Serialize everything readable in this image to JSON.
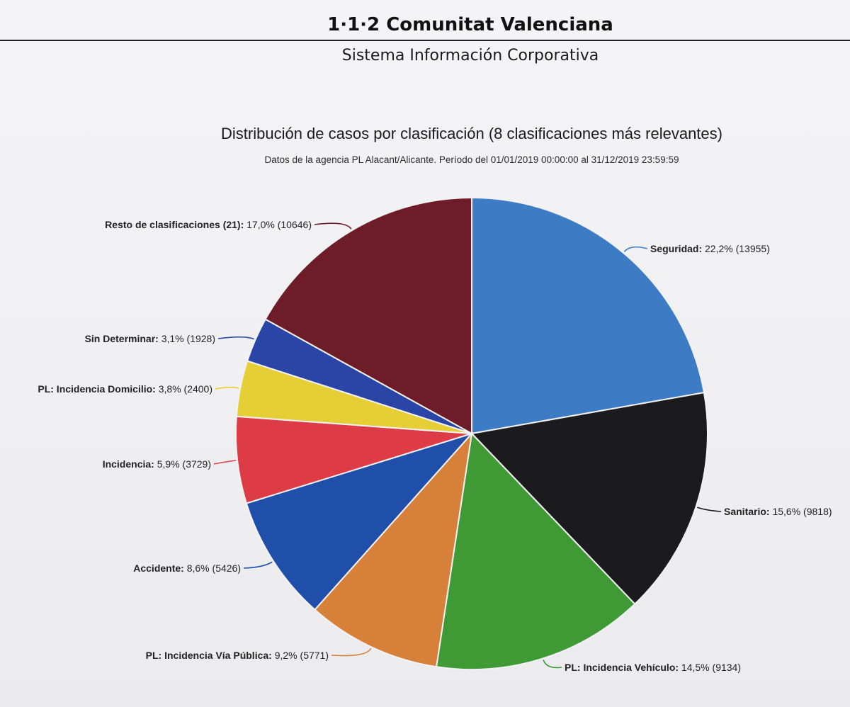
{
  "header": {
    "organization": "1·1·2 Comunitat Valenciana",
    "system": "Sistema Información Corporativa"
  },
  "chart_data": {
    "type": "pie",
    "title": "Distribución de casos por clasificación (8 clasificaciones más relevantes)",
    "subtitle": "Datos de la agencia PL Alacant/Alicante. Período del 01/01/2019 00:00:00 al 31/12/2019 23:59:59",
    "start_angle": 0,
    "direction": "clockwise",
    "slices": [
      {
        "category": "Seguridad",
        "percent": "22,2%",
        "value": 13955,
        "color": "#3d7cc4",
        "label_side": "right"
      },
      {
        "category": "Sanitario",
        "percent": "15,6%",
        "value": 9818,
        "color": "#1b1b1d",
        "label_side": "right"
      },
      {
        "category": "PL: Incidencia Vehículo",
        "percent": "14,5%",
        "value": 9134,
        "color": "#3f9a36",
        "label_side": "right"
      },
      {
        "category": "PL: Incidencia Vía Pública",
        "percent": "9,2%",
        "value": 5771,
        "color": "#d6803a",
        "label_side": "left"
      },
      {
        "category": "Accidente",
        "percent": "8,6%",
        "value": 5426,
        "color": "#1f4fa8",
        "label_side": "left"
      },
      {
        "category": "Incidencia",
        "percent": "5,9%",
        "value": 3729,
        "color": "#dd3b45",
        "label_side": "left"
      },
      {
        "category": "PL: Incidencia Domicilio",
        "percent": "3,8%",
        "value": 2400,
        "color": "#e6cf36",
        "label_side": "left"
      },
      {
        "category": "Sin Determinar",
        "percent": "3,1%",
        "value": 1928,
        "color": "#2a45a6",
        "label_side": "left"
      },
      {
        "category": "Resto de clasificaciones (21)",
        "percent": "17,0%",
        "value": 10646,
        "color": "#6e1d28",
        "label_side": "left"
      }
    ]
  }
}
